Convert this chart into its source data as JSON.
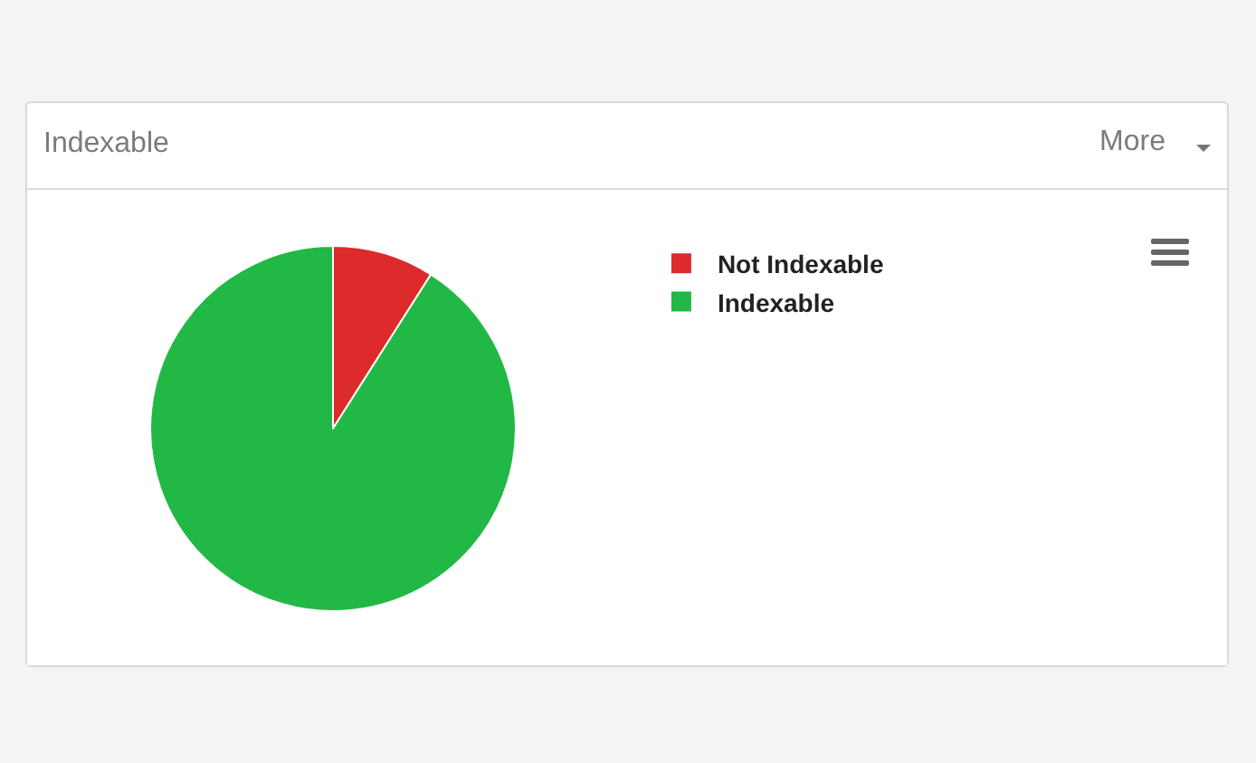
{
  "chart_data": {
    "type": "pie",
    "title": "Indexable",
    "categories": [
      "Not Indexable",
      "Indexable"
    ],
    "values": [
      9,
      91
    ],
    "colors": [
      "#dd2a2a",
      "#22b845"
    ],
    "legend": "top right",
    "annotations": [
      "More"
    ]
  }
}
